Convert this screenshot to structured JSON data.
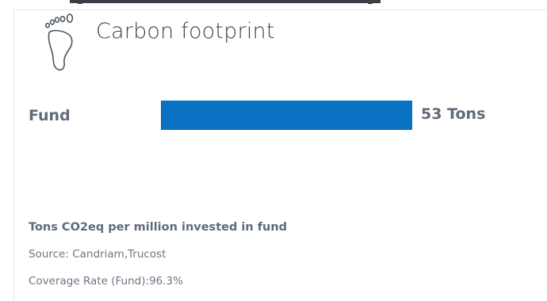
{
  "widget": {
    "title": "Carbon footprint",
    "icon": "footprint-icon"
  },
  "metric": {
    "label": "Fund",
    "value_text": "53 Tons",
    "bar_value": 53,
    "bar_color": "#0871c1"
  },
  "notes": {
    "unit_title": "Tons CO2eq per million invested in fund",
    "source": "Source: Candriam,Trucost",
    "coverage": "Coverage Rate (Fund):96.3%"
  }
}
